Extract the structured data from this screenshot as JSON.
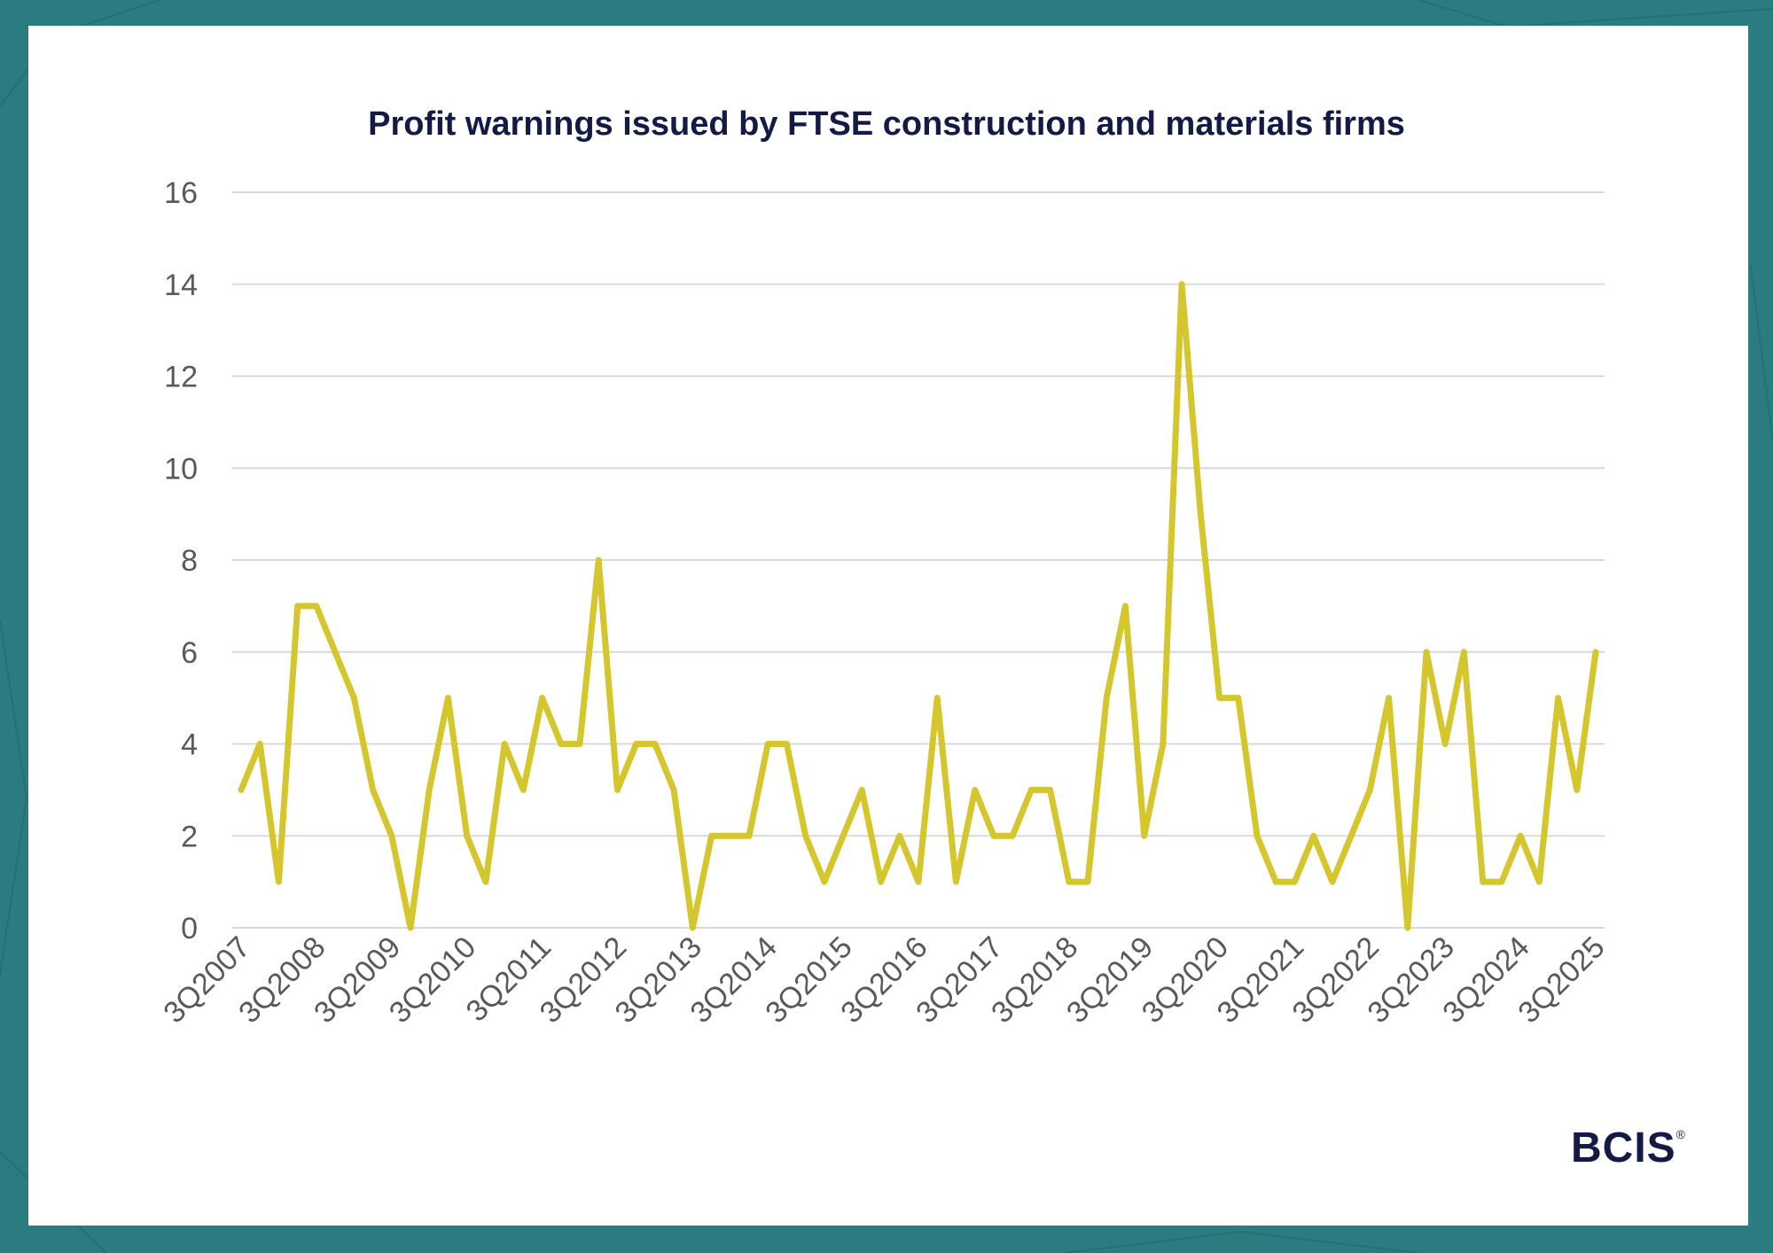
{
  "brand": {
    "logo_text": "BCIS",
    "registered_mark": "®"
  },
  "colors": {
    "line": "#d4c62c",
    "grid": "#d9d9d9",
    "title": "#141a46",
    "tick": "#595959",
    "frame": "#2a7c80"
  },
  "chart_data": {
    "type": "line",
    "title": "Profit warnings issued by FTSE construction and materials firms",
    "xlabel": "",
    "ylabel": "",
    "ylim": [
      0,
      16
    ],
    "yticks": [
      0,
      2,
      4,
      6,
      8,
      10,
      12,
      14,
      16
    ],
    "tick_labels": [
      "3Q2007",
      "3Q2008",
      "3Q2009",
      "3Q2010",
      "3Q2011",
      "3Q2012",
      "3Q2013",
      "3Q2014",
      "3Q2015",
      "3Q2016",
      "3Q2017",
      "3Q2018",
      "3Q2019",
      "3Q2020",
      "3Q2021",
      "3Q2022",
      "3Q2023",
      "3Q2024",
      "3Q2025"
    ],
    "grid": true,
    "series": [
      {
        "name": "Profit warnings",
        "values": [
          3,
          4,
          1,
          7,
          7,
          6,
          5,
          3,
          2,
          0,
          3,
          5,
          2,
          1,
          4,
          3,
          5,
          4,
          4,
          8,
          3,
          4,
          4,
          3,
          0,
          2,
          2,
          2,
          4,
          4,
          2,
          1,
          2,
          3,
          1,
          2,
          1,
          5,
          1,
          3,
          2,
          2,
          3,
          3,
          1,
          1,
          5,
          7,
          2,
          4,
          14,
          9,
          5,
          5,
          2,
          1,
          1,
          2,
          1,
          2,
          3,
          5,
          0,
          6,
          4,
          6,
          1,
          1,
          2,
          1,
          5,
          3,
          6
        ]
      }
    ]
  }
}
